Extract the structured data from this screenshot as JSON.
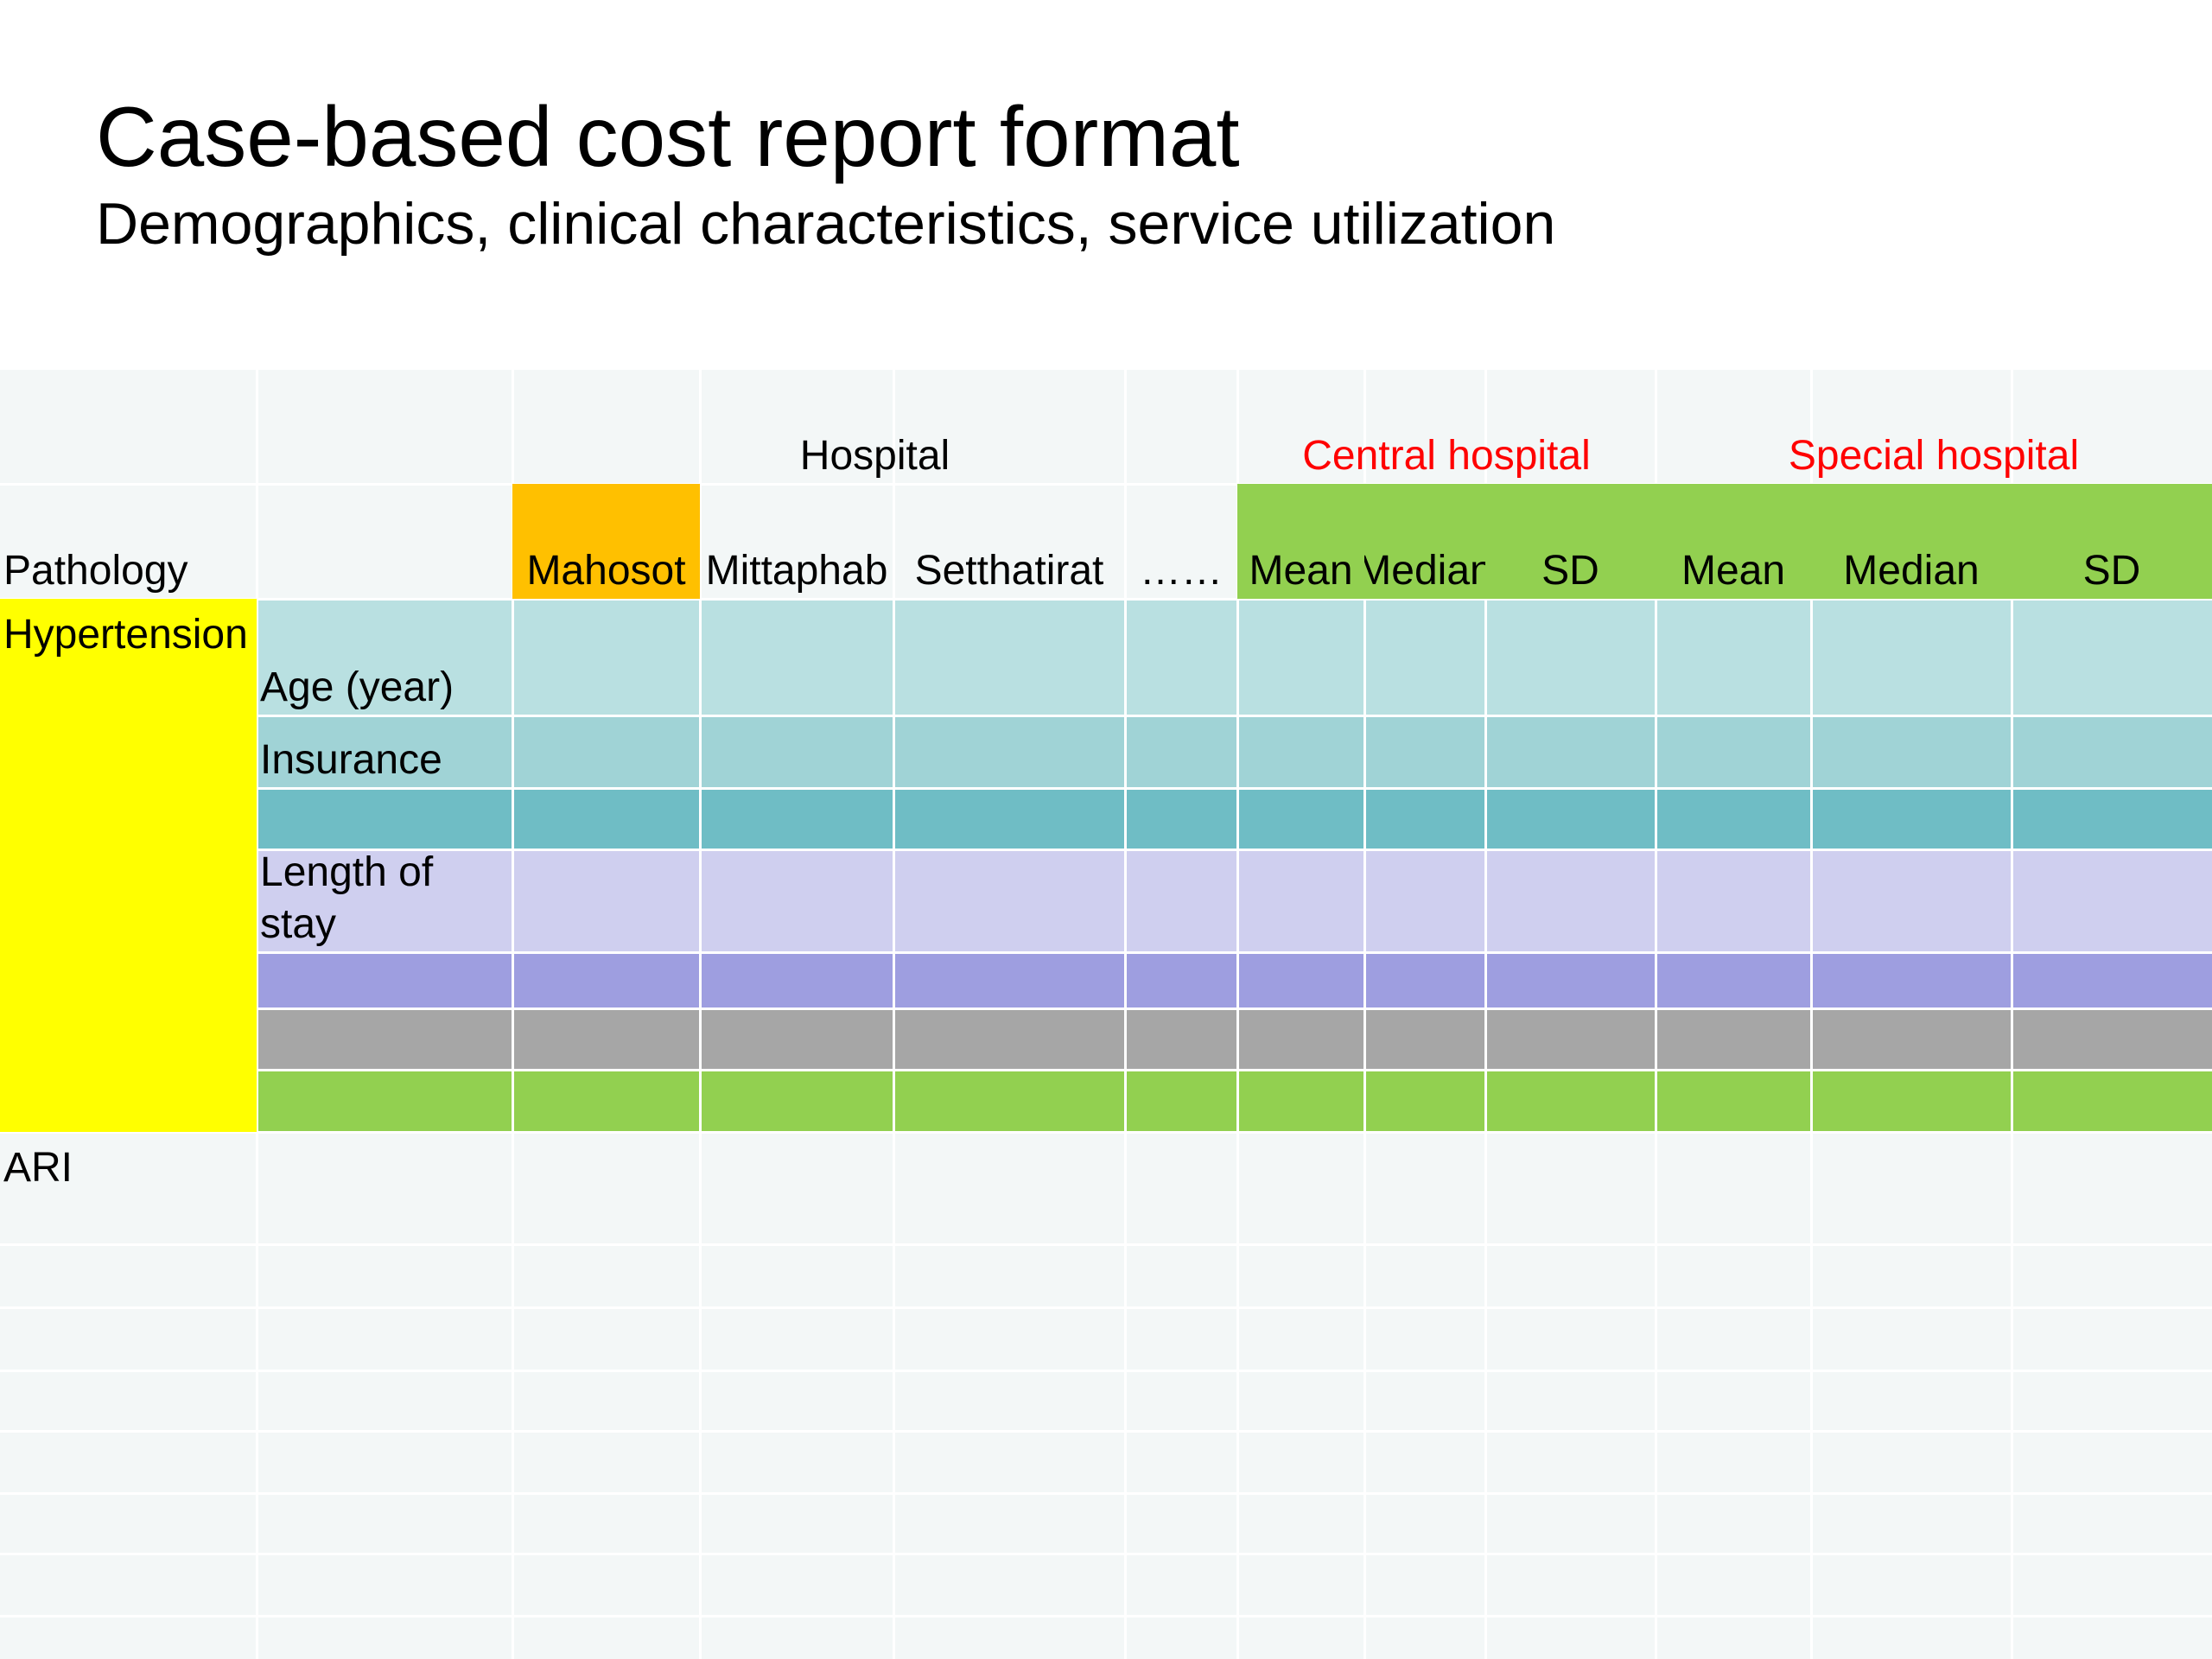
{
  "slide": {
    "title": "Case-based cost report format",
    "subtitle": "Demographics, clinical characteristics, service utilization"
  },
  "table": {
    "group_headers": {
      "hospital": "Hospital",
      "central": "Central hospital",
      "special": "Special hospital"
    },
    "pathology_label": "Pathology",
    "hospital_columns": [
      "Mahosot",
      "Mittaphab",
      "Setthatirat",
      "……"
    ],
    "stat_columns": [
      "Mean",
      "Median",
      "SD",
      "Mean",
      "Median",
      "SD"
    ],
    "pathologies": [
      "Hypertension",
      "ARI"
    ],
    "row_labels": [
      "Age (year)",
      "Insurance",
      "",
      "Length of\nstay",
      "",
      "",
      ""
    ]
  },
  "colors": {
    "background": "#f3f7f7",
    "grid_line": "#ffffff",
    "pathology_highlight": "#ffff00",
    "mahosot_header": "#ffc000",
    "stat_header": "#92d050",
    "group_header_text": "#ff0000",
    "row_fills": [
      "#b9e0e1",
      "#a0d3d6",
      "#6fbdc5",
      "#cfcfef",
      "#9e9ee0",
      "#a6a6a6",
      "#92d050"
    ]
  }
}
